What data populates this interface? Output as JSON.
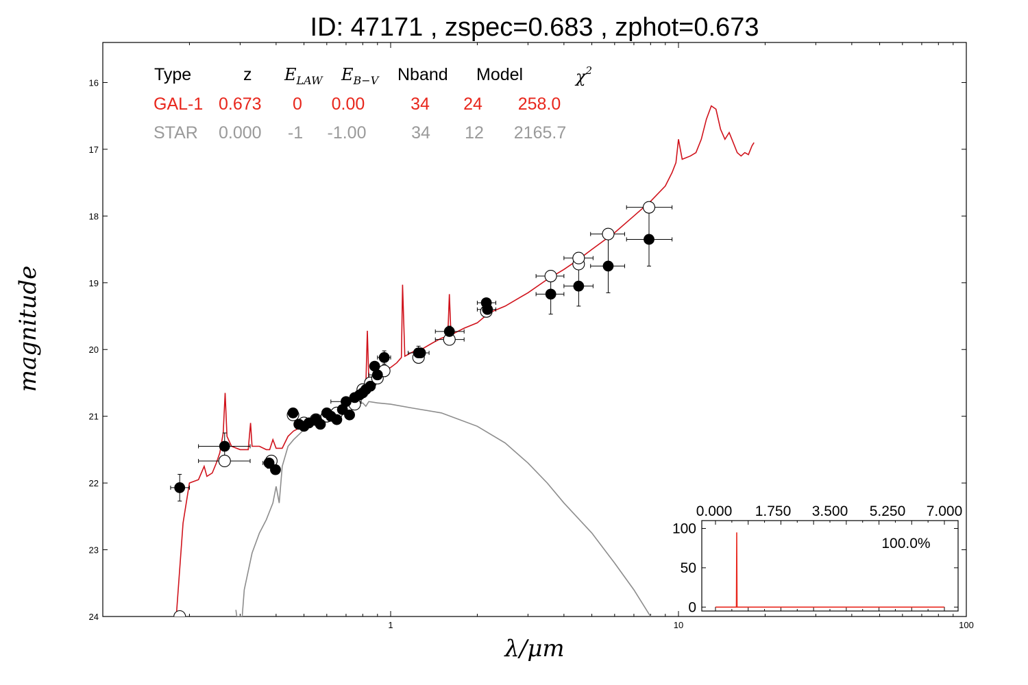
{
  "chart_data": {
    "type": "scatter",
    "title": "ID:  47171 , zspec=0.683 , zphot=0.673",
    "xlabel": "λ/μm",
    "ylabel": "magnitude",
    "x_scale": "log",
    "xlim": [
      0.1,
      100
    ],
    "ylim": [
      24,
      15.4
    ],
    "y_inverted": true,
    "x_ticks": [
      1,
      10,
      100
    ],
    "x_tick_labels": [
      "1",
      "10",
      "100"
    ],
    "y_ticks": [
      16,
      17,
      18,
      19,
      20,
      21,
      22,
      23,
      24
    ],
    "y_tick_labels": [
      "16",
      "17",
      "18",
      "19",
      "20",
      "21",
      "22",
      "23",
      "24"
    ],
    "fit_table": {
      "headers": {
        "type": "Type",
        "z": "z",
        "elaw_main": "E",
        "elaw_sub": "LAW",
        "ebv_main": "E",
        "ebv_sub": "B−V",
        "nband": "Nband",
        "model": "Model",
        "chi_main": "χ",
        "chi_sup": "2"
      },
      "rows": [
        {
          "type": "GAL-1",
          "z": "0.673",
          "elaw": "0",
          "ebv": "0.00",
          "nband": "34",
          "model": "24",
          "chi2": "258.0",
          "color": "#e8261c"
        },
        {
          "type": "STAR",
          "z": "0.000",
          "elaw": "-1",
          "ebv": "-1.00",
          "nband": "34",
          "model": "12",
          "chi2": "2165.7",
          "color": "#9a9a9a"
        }
      ]
    },
    "series": [
      {
        "kind": "line",
        "color": "#d0121b",
        "points": [
          [
            0.18,
            24.0
          ],
          [
            0.19,
            22.6
          ],
          [
            0.2,
            22.0
          ],
          [
            0.215,
            21.95
          ],
          [
            0.225,
            21.75
          ],
          [
            0.23,
            21.9
          ],
          [
            0.24,
            21.85
          ],
          [
            0.248,
            21.7
          ],
          [
            0.255,
            21.55
          ],
          [
            0.262,
            21.25
          ],
          [
            0.266,
            20.65
          ],
          [
            0.27,
            21.3
          ],
          [
            0.28,
            21.45
          ],
          [
            0.3,
            21.5
          ],
          [
            0.32,
            21.5
          ],
          [
            0.326,
            21.1
          ],
          [
            0.33,
            21.45
          ],
          [
            0.35,
            21.45
          ],
          [
            0.37,
            21.5
          ],
          [
            0.38,
            21.5
          ],
          [
            0.39,
            21.35
          ],
          [
            0.4,
            21.48
          ],
          [
            0.42,
            21.48
          ],
          [
            0.44,
            21.3
          ],
          [
            0.46,
            21.22
          ],
          [
            0.48,
            21.18
          ],
          [
            0.5,
            21.15
          ],
          [
            0.55,
            21.08
          ],
          [
            0.6,
            21.0
          ],
          [
            0.65,
            20.95
          ],
          [
            0.7,
            20.85
          ],
          [
            0.75,
            20.75
          ],
          [
            0.8,
            20.62
          ],
          [
            0.82,
            20.55
          ],
          [
            0.83,
            19.72
          ],
          [
            0.84,
            20.48
          ],
          [
            0.9,
            20.4
          ],
          [
            0.95,
            20.32
          ],
          [
            1.0,
            20.27
          ],
          [
            1.05,
            20.2
          ],
          [
            1.09,
            20.12
          ],
          [
            1.1,
            19.03
          ],
          [
            1.12,
            20.1
          ],
          [
            1.2,
            20.03
          ],
          [
            1.3,
            19.98
          ],
          [
            1.4,
            19.9
          ],
          [
            1.5,
            19.83
          ],
          [
            1.58,
            19.8
          ],
          [
            1.6,
            19.17
          ],
          [
            1.62,
            19.78
          ],
          [
            1.8,
            19.68
          ],
          [
            2.0,
            19.6
          ],
          [
            2.2,
            19.45
          ],
          [
            2.5,
            19.35
          ],
          [
            3.0,
            19.15
          ],
          [
            3.5,
            18.95
          ],
          [
            4.0,
            18.8
          ],
          [
            4.5,
            18.65
          ],
          [
            5.0,
            18.5
          ],
          [
            6.0,
            18.25
          ],
          [
            7.0,
            18.0
          ],
          [
            8.0,
            17.78
          ],
          [
            9.0,
            17.55
          ],
          [
            9.5,
            17.35
          ],
          [
            9.8,
            17.2
          ],
          [
            10.0,
            16.85
          ],
          [
            10.3,
            17.15
          ],
          [
            11.0,
            17.1
          ],
          [
            11.5,
            17.05
          ],
          [
            12.0,
            16.85
          ],
          [
            12.5,
            16.55
          ],
          [
            13.0,
            16.35
          ],
          [
            13.5,
            16.4
          ],
          [
            14.0,
            16.7
          ],
          [
            14.5,
            16.85
          ],
          [
            15.0,
            16.75
          ],
          [
            15.5,
            16.9
          ],
          [
            16.0,
            17.05
          ],
          [
            16.5,
            17.1
          ],
          [
            17.0,
            17.05
          ],
          [
            17.5,
            17.08
          ],
          [
            18.0,
            16.95
          ],
          [
            18.3,
            16.9
          ]
        ]
      },
      {
        "kind": "line",
        "color": "#8c8c8c",
        "points": [
          [
            0.29,
            23.9
          ],
          [
            0.292,
            24.0
          ],
          [
            0.305,
            24.0
          ],
          [
            0.31,
            23.6
          ],
          [
            0.33,
            23.05
          ],
          [
            0.35,
            22.75
          ],
          [
            0.37,
            22.55
          ],
          [
            0.39,
            22.3
          ],
          [
            0.4,
            22.05
          ],
          [
            0.41,
            22.3
          ],
          [
            0.42,
            21.75
          ],
          [
            0.44,
            21.45
          ],
          [
            0.46,
            21.35
          ],
          [
            0.5,
            21.2
          ],
          [
            0.55,
            21.05
          ],
          [
            0.6,
            20.95
          ],
          [
            0.7,
            20.85
          ],
          [
            0.8,
            20.8
          ],
          [
            0.82,
            20.85
          ],
          [
            0.84,
            20.78
          ],
          [
            0.9,
            20.8
          ],
          [
            1.0,
            20.82
          ],
          [
            1.2,
            20.88
          ],
          [
            1.5,
            20.95
          ],
          [
            2.0,
            21.15
          ],
          [
            2.5,
            21.4
          ],
          [
            3.0,
            21.7
          ],
          [
            3.5,
            22.0
          ],
          [
            4.0,
            22.3
          ],
          [
            5.0,
            22.75
          ],
          [
            6.0,
            23.2
          ],
          [
            7.0,
            23.6
          ],
          [
            8.0,
            24.0
          ]
        ]
      },
      {
        "kind": "points-filled",
        "color": "#000000",
        "points": [
          [
            0.185,
            22.07
          ],
          [
            0.265,
            21.45
          ],
          [
            0.378,
            21.7
          ],
          [
            0.398,
            21.8
          ],
          [
            0.458,
            20.95
          ],
          [
            0.48,
            21.12
          ],
          [
            0.5,
            21.15
          ],
          [
            0.52,
            21.1
          ],
          [
            0.55,
            21.05
          ],
          [
            0.57,
            21.12
          ],
          [
            0.6,
            20.95
          ],
          [
            0.62,
            21.0
          ],
          [
            0.65,
            21.05
          ],
          [
            0.68,
            20.9
          ],
          [
            0.7,
            20.78
          ],
          [
            0.72,
            20.98
          ],
          [
            0.75,
            20.72
          ],
          [
            0.78,
            20.68
          ],
          [
            0.8,
            20.65
          ],
          [
            0.82,
            20.6
          ],
          [
            0.85,
            20.55
          ],
          [
            0.88,
            20.25
          ],
          [
            0.9,
            20.38
          ],
          [
            0.95,
            20.12
          ],
          [
            1.25,
            20.05
          ],
          [
            1.27,
            20.05
          ],
          [
            1.6,
            19.73
          ],
          [
            2.15,
            19.3
          ],
          [
            2.17,
            19.4
          ],
          [
            3.6,
            19.17
          ],
          [
            4.5,
            19.05
          ],
          [
            5.7,
            18.75
          ],
          [
            7.9,
            18.35
          ]
        ]
      },
      {
        "kind": "points-open",
        "color": "#000000",
        "points": [
          [
            0.185,
            24.0
          ],
          [
            0.265,
            21.67
          ],
          [
            0.385,
            21.67
          ],
          [
            0.458,
            20.98
          ],
          [
            0.5,
            21.1
          ],
          [
            0.55,
            21.05
          ],
          [
            0.6,
            21.0
          ],
          [
            0.65,
            20.95
          ],
          [
            0.7,
            20.88
          ],
          [
            0.75,
            20.82
          ],
          [
            0.8,
            20.6
          ],
          [
            0.85,
            20.5
          ],
          [
            0.9,
            20.43
          ],
          [
            0.95,
            20.32
          ],
          [
            1.25,
            20.12
          ],
          [
            1.6,
            19.85
          ],
          [
            2.15,
            19.43
          ],
          [
            3.6,
            18.9
          ],
          [
            4.5,
            18.72
          ],
          [
            4.5,
            18.63
          ],
          [
            5.7,
            18.27
          ],
          [
            7.9,
            17.87
          ]
        ]
      }
    ],
    "error_bars": [
      {
        "x": 0.185,
        "y": 22.07,
        "xlo": 0.172,
        "xhi": 0.2,
        "ylo": 21.87,
        "yhi": 22.27
      },
      {
        "x": 0.265,
        "y": 21.45,
        "xlo": 0.215,
        "xhi": 0.325,
        "ylo": 21.25,
        "yhi": 21.67
      },
      {
        "x": 0.265,
        "y": 21.67,
        "xlo": 0.215,
        "xhi": 0.325,
        "ylo": 21.67,
        "yhi": 21.67
      },
      {
        "x": 0.378,
        "y": 21.7,
        "xlo": 0.36,
        "xhi": 0.396,
        "ylo": 21.62,
        "yhi": 21.78
      },
      {
        "x": 0.398,
        "y": 21.8,
        "xlo": 0.385,
        "xhi": 0.41,
        "ylo": 21.74,
        "yhi": 21.86
      },
      {
        "x": 0.7,
        "y": 20.78,
        "xlo": 0.62,
        "xhi": 0.79,
        "ylo": 20.72,
        "yhi": 20.84
      },
      {
        "x": 0.95,
        "y": 20.12,
        "xlo": 0.9,
        "xhi": 1.0,
        "ylo": 20.02,
        "yhi": 20.22
      },
      {
        "x": 0.9,
        "y": 20.38,
        "xlo": 0.84,
        "xhi": 0.96,
        "ylo": 20.3,
        "yhi": 20.46
      },
      {
        "x": 1.25,
        "y": 20.05,
        "xlo": 1.15,
        "xhi": 1.36,
        "ylo": 19.95,
        "yhi": 20.15
      },
      {
        "x": 1.6,
        "y": 19.73,
        "xlo": 1.43,
        "xhi": 1.8,
        "ylo": 19.65,
        "yhi": 19.8
      },
      {
        "x": 1.6,
        "y": 19.85,
        "xlo": 1.43,
        "xhi": 1.8,
        "ylo": 19.85,
        "yhi": 19.85
      },
      {
        "x": 2.15,
        "y": 19.3,
        "xlo": 2.0,
        "xhi": 2.32,
        "ylo": 19.25,
        "yhi": 19.35
      },
      {
        "x": 2.17,
        "y": 19.4,
        "xlo": 2.0,
        "xhi": 2.32,
        "ylo": 19.36,
        "yhi": 19.44
      },
      {
        "x": 3.6,
        "y": 19.17,
        "xlo": 3.2,
        "xhi": 4.0,
        "ylo": 18.9,
        "yhi": 19.47
      },
      {
        "x": 3.6,
        "y": 18.9,
        "xlo": 3.2,
        "xhi": 4.0,
        "ylo": 18.9,
        "yhi": 18.9
      },
      {
        "x": 4.5,
        "y": 19.05,
        "xlo": 4.0,
        "xhi": 5.05,
        "ylo": 18.7,
        "yhi": 19.35
      },
      {
        "x": 4.5,
        "y": 18.63,
        "xlo": 4.0,
        "xhi": 5.05,
        "ylo": 18.63,
        "yhi": 18.63
      },
      {
        "x": 5.7,
        "y": 18.75,
        "xlo": 4.95,
        "xhi": 6.5,
        "ylo": 18.27,
        "yhi": 19.15
      },
      {
        "x": 5.7,
        "y": 18.27,
        "xlo": 4.95,
        "xhi": 6.5,
        "ylo": 18.27,
        "yhi": 18.27
      },
      {
        "x": 7.9,
        "y": 18.35,
        "xlo": 6.6,
        "xhi": 9.5,
        "ylo": 17.87,
        "yhi": 18.75
      },
      {
        "x": 7.9,
        "y": 17.87,
        "xlo": 6.6,
        "xhi": 9.5,
        "ylo": 17.87,
        "yhi": 17.87
      }
    ],
    "inset": {
      "type": "line",
      "xlim": [
        0.0,
        7.0
      ],
      "ylim": [
        -5,
        110
      ],
      "x_tick_labels": [
        "0.000",
        "1.750",
        "3.500",
        "5.250",
        "7.000"
      ],
      "y_tick_labels": [
        "0",
        "50",
        "100"
      ],
      "annotation": "100.0%",
      "color": "#e8261c",
      "points": [
        [
          0.0,
          0
        ],
        [
          0.64,
          0
        ],
        [
          0.65,
          95
        ],
        [
          0.66,
          0
        ],
        [
          7.0,
          0
        ]
      ]
    }
  }
}
